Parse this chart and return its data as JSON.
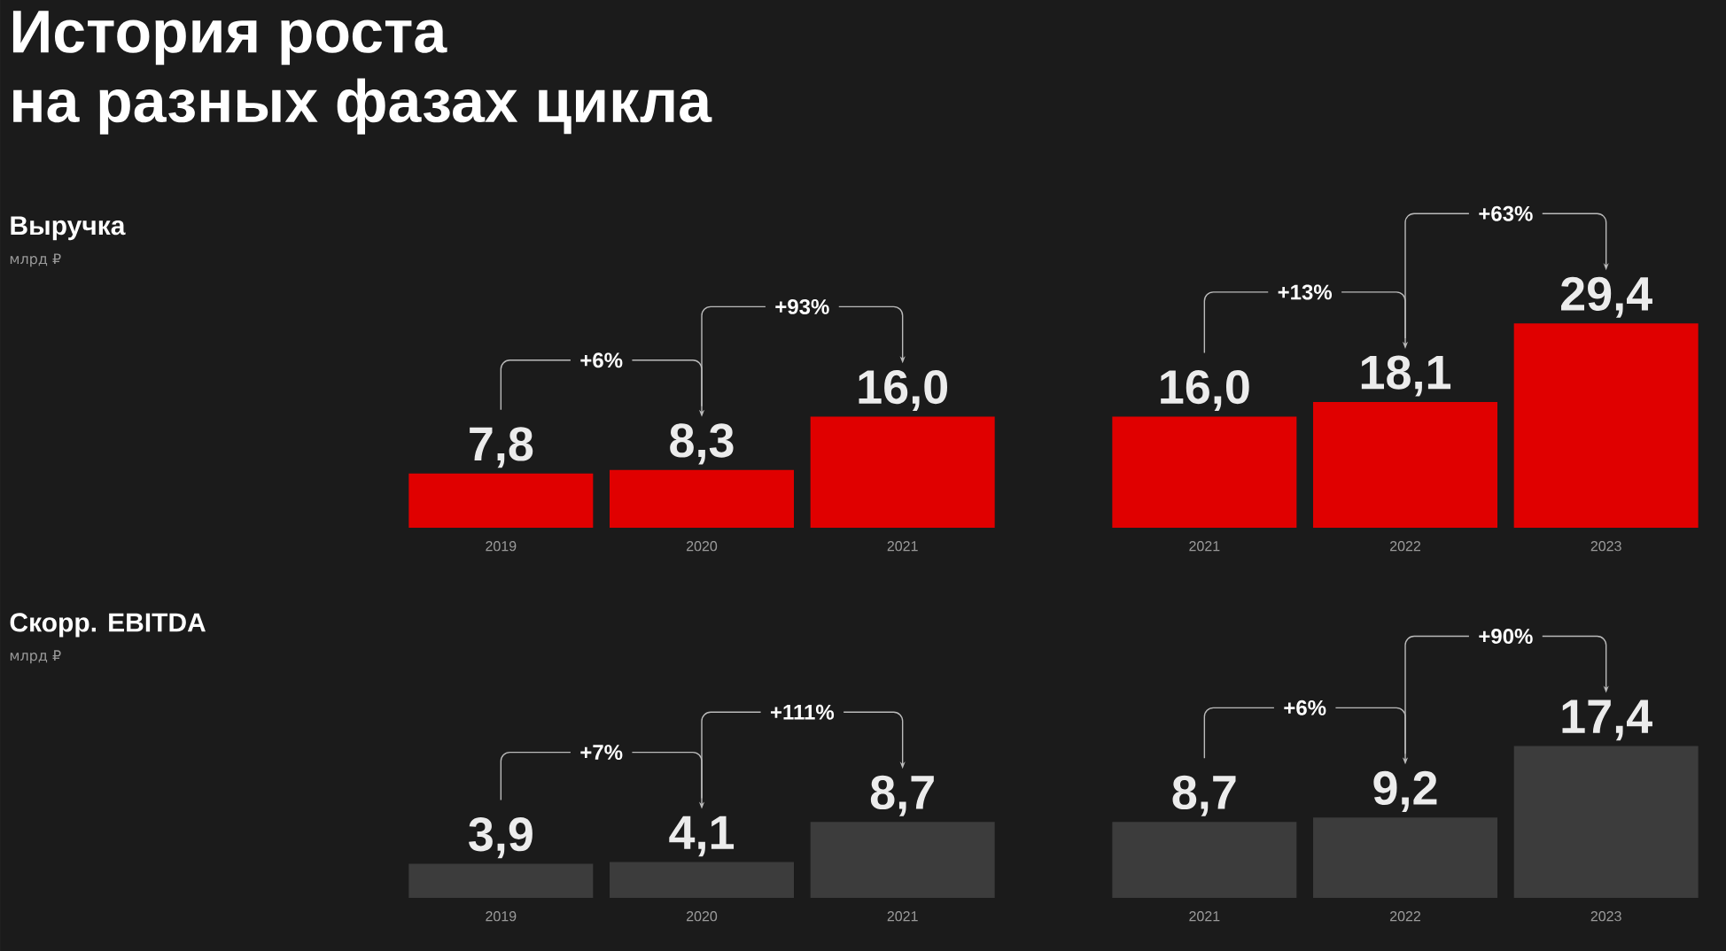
{
  "chart_data": [
    {
      "type": "bar",
      "ylabel": "Выручка",
      "categories": [
        "2019",
        "2020",
        "2021"
      ],
      "values": [
        7.8,
        8.3,
        16.0
      ],
      "value_labels": [
        "7,8",
        "8,3",
        "16,0"
      ],
      "color": "#e00000",
      "tick_labels": "x",
      "annotations": [
        "История роста",
        "на разных фазах цикла",
        "млрд ₽",
        "+6%",
        "+93%"
      ]
    },
    {
      "type": "bar",
      "categories": [
        "2021",
        "2022",
        "2023"
      ],
      "values": [
        16.0,
        18.1,
        29.4
      ],
      "value_labels": [
        "16,0",
        "18,1",
        "29,4"
      ],
      "color": "#e00000",
      "tick_labels": "x",
      "annotations": [
        "+13%",
        "+63%"
      ]
    },
    {
      "type": "bar",
      "ylabel": "Скорр. EBITDA",
      "categories": [
        "2019",
        "2020",
        "2021"
      ],
      "values": [
        3.9,
        4.1,
        8.7
      ],
      "value_labels": [
        "3,9",
        "4,1",
        "8,7"
      ],
      "color": "#3c3c3c",
      "tick_labels": "x",
      "annotations": [
        "млрд ₽",
        "+7%",
        "+111%"
      ]
    },
    {
      "type": "bar",
      "categories": [
        "2021",
        "2022",
        "2023"
      ],
      "values": [
        8.7,
        9.2,
        17.4
      ],
      "value_labels": [
        "8,7",
        "9,2",
        "17,4"
      ],
      "color": "#3c3c3c",
      "tick_labels": "x",
      "annotations": [
        "+6%",
        "+90%"
      ]
    }
  ]
}
